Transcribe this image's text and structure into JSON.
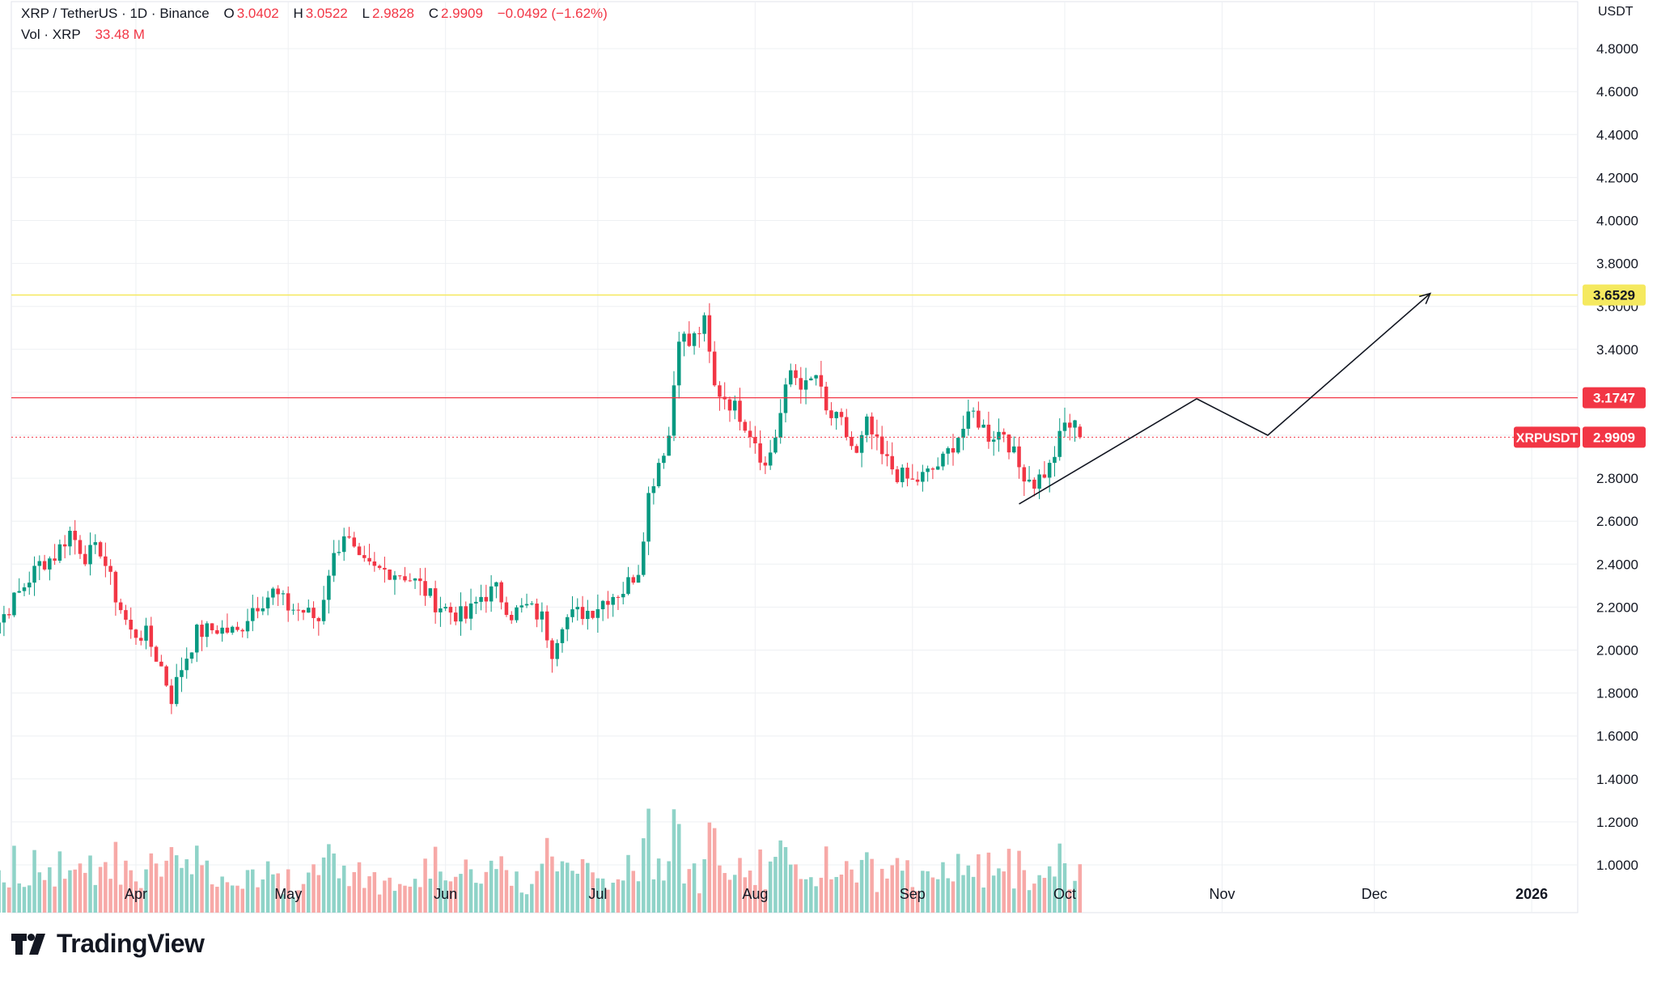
{
  "legend": {
    "symbol": "XRP / TetherUS · 1D · Binance",
    "o_label": "O",
    "o": "3.0402",
    "h_label": "H",
    "h": "3.0522",
    "l_label": "L",
    "l": "2.9828",
    "c_label": "C",
    "c": "2.9909",
    "change": "−0.0492 (−1.62%)",
    "vol_label": "Vol · XRP",
    "vol": "33.48 M"
  },
  "axis": {
    "unit": "USDT"
  },
  "brand": {
    "name": "TradingView"
  },
  "colors": {
    "up": "#089981",
    "down": "#f23645",
    "vol_up": "#8fd3c8",
    "vol_down": "#f7a9a7",
    "resistance": "#f23645",
    "target": "#f5e95f",
    "target_text": "#e0c500",
    "grid": "#eef0f3"
  },
  "chart_data": {
    "type": "candlestick",
    "title": "XRP / TetherUS · 1D · Binance",
    "ylabel": "USDT",
    "ylim": [
      0.9,
      4.95
    ],
    "y_ticks": [
      "4.8000",
      "4.6000",
      "4.4000",
      "4.2000",
      "4.0000",
      "3.8000",
      "3.6000",
      "3.4000",
      "3.2000",
      "3.0000",
      "2.8000",
      "2.6000",
      "2.4000",
      "2.2000",
      "2.0000",
      "1.8000",
      "1.6000",
      "1.4000",
      "1.2000",
      "1.0000"
    ],
    "x_ticks": [
      "Apr",
      "May",
      "Jun",
      "Jul",
      "Aug",
      "Sep",
      "Oct",
      "Nov",
      "Dec",
      "2026"
    ],
    "start_date": "2025-03-01",
    "end_date": "2025-10-04",
    "price_labels": [
      {
        "name": "target",
        "value": 3.6529,
        "label": "3.6529"
      },
      {
        "name": "resistance",
        "value": 3.1747,
        "label": "3.1747"
      },
      {
        "name": "last",
        "value": 2.9909,
        "label": "2.9909",
        "tag": "XRPUSDT"
      }
    ],
    "keypoints": [
      [
        "2025-03-01",
        2.38
      ],
      [
        "2025-03-04",
        2.1
      ],
      [
        "2025-03-07",
        2.2
      ],
      [
        "2025-03-10",
        2.3
      ],
      [
        "2025-03-13",
        2.4
      ],
      [
        "2025-03-16",
        2.44
      ],
      [
        "2025-03-19",
        2.55
      ],
      [
        "2025-03-22",
        2.44
      ],
      [
        "2025-03-25",
        2.47
      ],
      [
        "2025-03-28",
        2.25
      ],
      [
        "2025-03-31",
        2.08
      ],
      [
        "2025-04-03",
        2.07
      ],
      [
        "2025-04-06",
        1.92
      ],
      [
        "2025-04-08",
        1.78
      ],
      [
        "2025-04-10",
        1.92
      ],
      [
        "2025-04-13",
        2.08
      ],
      [
        "2025-04-17",
        2.1
      ],
      [
        "2025-04-21",
        2.08
      ],
      [
        "2025-04-24",
        2.2
      ],
      [
        "2025-04-28",
        2.27
      ],
      [
        "2025-05-01",
        2.2
      ],
      [
        "2025-05-04",
        2.18
      ],
      [
        "2025-05-07",
        2.14
      ],
      [
        "2025-05-09",
        2.37
      ],
      [
        "2025-05-12",
        2.55
      ],
      [
        "2025-05-15",
        2.4
      ],
      [
        "2025-05-18",
        2.37
      ],
      [
        "2025-05-21",
        2.37
      ],
      [
        "2025-05-24",
        2.35
      ],
      [
        "2025-05-27",
        2.3
      ],
      [
        "2025-05-30",
        2.22
      ],
      [
        "2025-06-02",
        2.18
      ],
      [
        "2025-06-05",
        2.15
      ],
      [
        "2025-06-08",
        2.25
      ],
      [
        "2025-06-11",
        2.28
      ],
      [
        "2025-06-14",
        2.17
      ],
      [
        "2025-06-17",
        2.2
      ],
      [
        "2025-06-20",
        2.15
      ],
      [
        "2025-06-22",
        2.0
      ],
      [
        "2025-06-24",
        2.14
      ],
      [
        "2025-06-27",
        2.17
      ],
      [
        "2025-06-30",
        2.19
      ],
      [
        "2025-07-03",
        2.25
      ],
      [
        "2025-07-06",
        2.28
      ],
      [
        "2025-07-09",
        2.38
      ],
      [
        "2025-07-11",
        2.72
      ],
      [
        "2025-07-13",
        2.88
      ],
      [
        "2025-07-15",
        3.0
      ],
      [
        "2025-07-17",
        3.48
      ],
      [
        "2025-07-19",
        3.42
      ],
      [
        "2025-07-22",
        3.52
      ],
      [
        "2025-07-24",
        3.22
      ],
      [
        "2025-07-26",
        3.18
      ],
      [
        "2025-07-29",
        3.1
      ],
      [
        "2025-08-01",
        2.98
      ],
      [
        "2025-08-03",
        2.85
      ],
      [
        "2025-08-05",
        3.0
      ],
      [
        "2025-08-08",
        3.3
      ],
      [
        "2025-08-11",
        3.22
      ],
      [
        "2025-08-13",
        3.28
      ],
      [
        "2025-08-15",
        3.1
      ],
      [
        "2025-08-18",
        3.05
      ],
      [
        "2025-08-21",
        2.9
      ],
      [
        "2025-08-23",
        3.05
      ],
      [
        "2025-08-26",
        2.9
      ],
      [
        "2025-08-29",
        2.82
      ],
      [
        "2025-09-01",
        2.78
      ],
      [
        "2025-09-04",
        2.82
      ],
      [
        "2025-09-07",
        2.88
      ],
      [
        "2025-09-10",
        3.0
      ],
      [
        "2025-09-13",
        3.1
      ],
      [
        "2025-09-16",
        3.0
      ],
      [
        "2025-09-19",
        3.02
      ],
      [
        "2025-09-22",
        2.85
      ],
      [
        "2025-09-25",
        2.78
      ],
      [
        "2025-09-28",
        2.85
      ],
      [
        "2025-10-01",
        3.05
      ],
      [
        "2025-10-03",
        3.04
      ],
      [
        "2025-10-04",
        2.9909
      ]
    ],
    "annotations": {
      "support_line": [
        [
          "2025-09-22",
          2.68
        ],
        [
          "2025-10-27",
          3.17
        ]
      ],
      "projection": [
        [
          "2025-10-27",
          3.17
        ],
        [
          "2025-11-10",
          3.0
        ],
        [
          "2025-12-12",
          3.66
        ]
      ]
    }
  }
}
